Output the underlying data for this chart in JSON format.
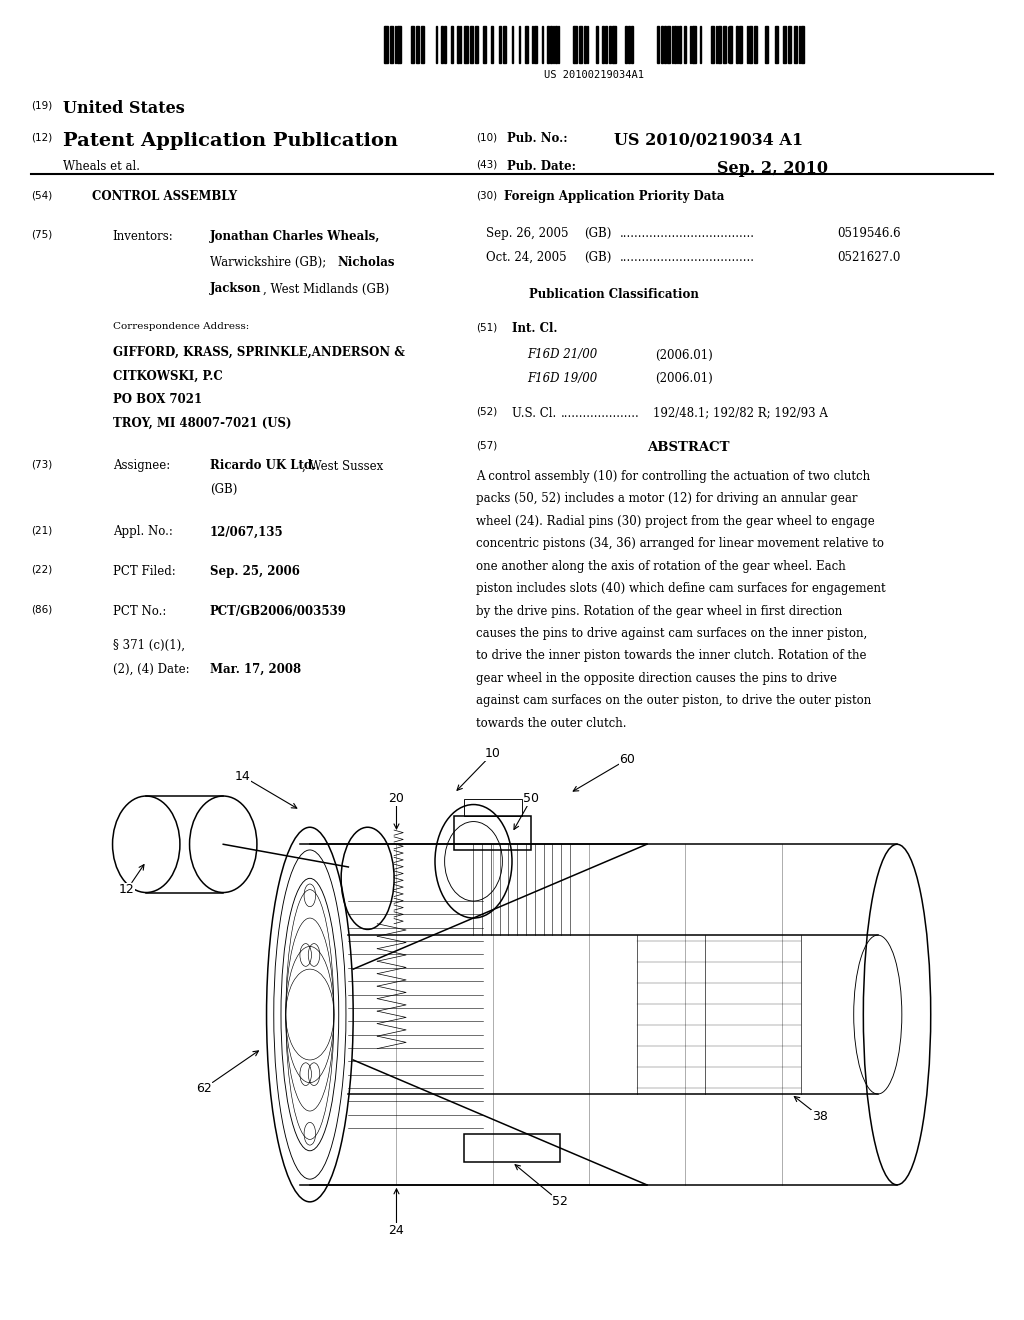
{
  "background_color": "#ffffff",
  "page_width": 10.24,
  "page_height": 13.2,
  "barcode_text": "US 20100219034A1",
  "header": {
    "num19": "(19)",
    "united_states": "United States",
    "num12": "(12)",
    "patent_app": "Patent Application Publication",
    "wheals": "Wheals et al.",
    "num10_label": "(10)",
    "pub_no_label": "Pub. No.:",
    "pub_no_value": "US 2010/0219034 A1",
    "num43_label": "(43)",
    "pub_date_label": "Pub. Date:",
    "pub_date_value": "Sep. 2, 2010"
  },
  "left_col": {
    "title": "CONTROL ASSEMBLY",
    "inventors_label": "Inventors:",
    "corr_addr_label": "Correspondence Address:",
    "assignee_label": "Assignee:",
    "appl_label": "Appl. No.:",
    "appl_value": "12/067,135",
    "pct_filed_label": "PCT Filed:",
    "pct_filed_value": "Sep. 25, 2006",
    "pct_no_label": "PCT No.:",
    "pct_no_value": "PCT/GB2006/003539",
    "section371a": "§ 371 (c)(1),",
    "section371b": "(2), (4) Date:",
    "section371c": "Mar. 17, 2008"
  },
  "right_col": {
    "foreign_app_title": "Foreign Application Priority Data",
    "row1_date": "Sep. 26, 2005",
    "row1_country": "(GB)",
    "row1_num": "0519546.6",
    "row2_date": "Oct. 24, 2005",
    "row2_country": "(GB)",
    "row2_num": "0521627.0",
    "pub_class_title": "Publication Classification",
    "int_cl1": "F16D 21/00",
    "int_cl1_year": "(2006.01)",
    "int_cl2": "F16D 19/00",
    "int_cl2_year": "(2006.01)",
    "us_cl_value": "192/48.1; 192/82 R; 192/93 A",
    "abstract_title": "ABSTRACT",
    "abstract_text": "A control assembly (10) for controlling the actuation of two clutch packs (50, 52) includes a motor (12) for driving an annular gear wheel (24). Radial pins (30) project from the gear wheel to engage concentric pistons (34, 36) arranged for linear movement relative to one another along the axis of rotation of the gear wheel. Each piston includes slots (40) which define cam surfaces for engagement by the drive pins. Rotation of the gear wheel in first direction causes the pins to drive against cam surfaces on the inner piston, to drive the inner piston towards the inner clutch. Rotation of the gear wheel in the opposite direction causes the pins to drive against cam surfaces on the outer piston, to drive the outer piston towards the outer clutch."
  }
}
